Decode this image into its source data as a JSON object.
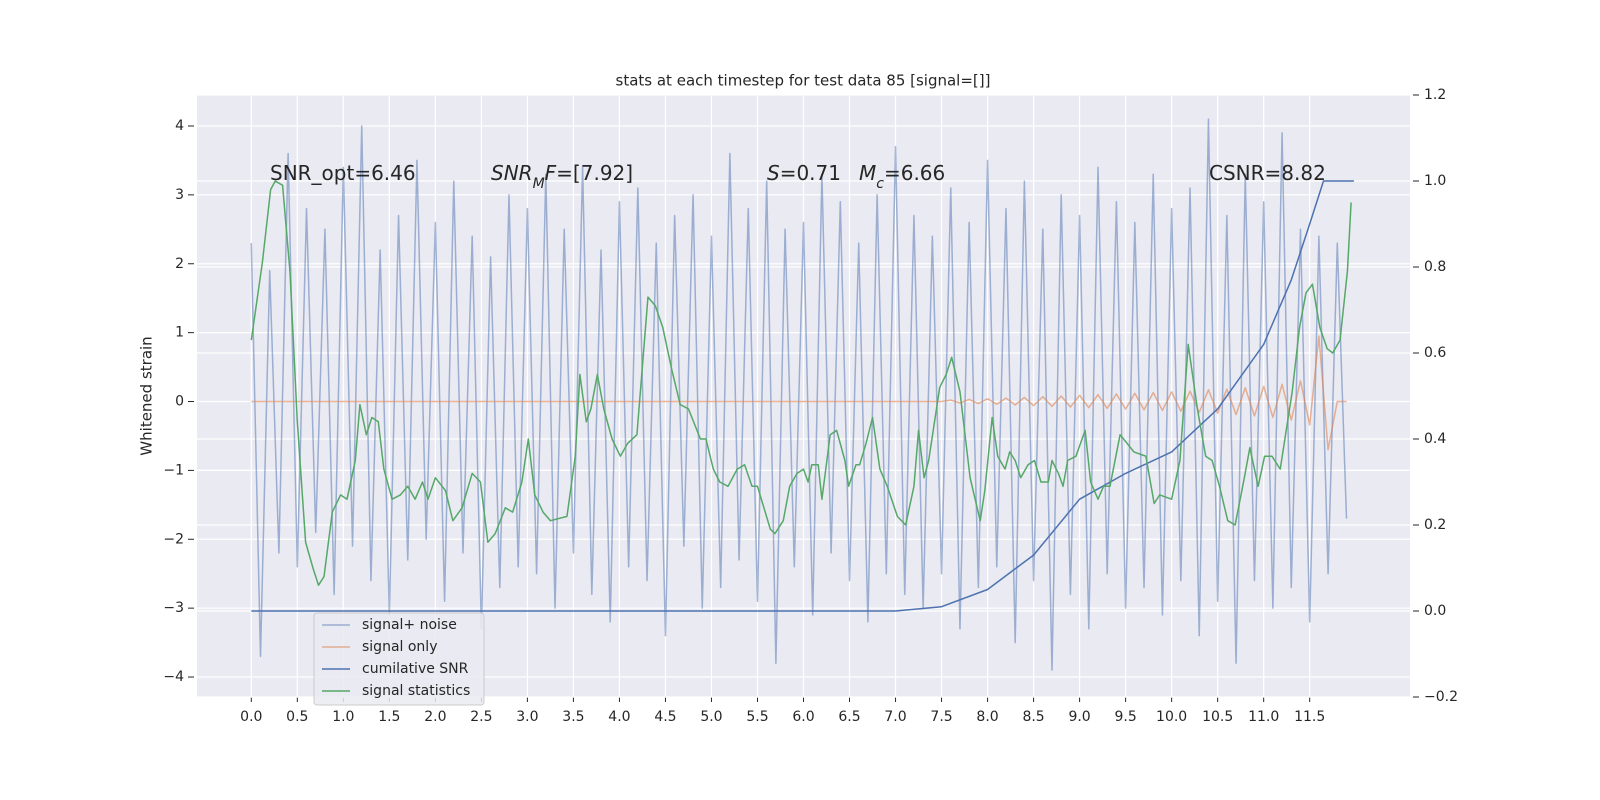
{
  "chart_data": {
    "type": "line",
    "title": "stats at each timestep for test data 85 [signal=[]]",
    "ylabel": "Whitened strain",
    "xlim": [
      -0.59,
      12.59
    ],
    "ylim": [
      -4.29,
      4.45
    ],
    "y2lim": [
      -0.2,
      1.2
    ],
    "grid": true,
    "legend_loc": "lower left",
    "xticks": [
      {
        "value": 0,
        "label": "0.0"
      },
      0.5,
      {
        "value": 1,
        "label": "1.0"
      },
      1.5,
      {
        "value": 2,
        "label": "2.0"
      },
      2.5,
      {
        "value": 3,
        "label": "3.0"
      },
      3.5,
      {
        "value": 4,
        "label": "4.0"
      },
      4.5,
      {
        "value": 5,
        "label": "5.0"
      },
      5.5,
      {
        "value": 6,
        "label": "6.0"
      },
      6.5,
      {
        "value": 7,
        "label": "7.0"
      },
      7.5,
      {
        "value": 8,
        "label": "8.0"
      },
      8.5,
      {
        "value": 9,
        "label": "9.0"
      },
      9.5,
      {
        "value": 10,
        "label": "10.0"
      },
      10.5,
      {
        "value": 11,
        "label": "11.0"
      },
      11.5
    ],
    "yticks": [
      {
        "value": -4,
        "label": "−4"
      },
      {
        "value": -3,
        "label": "−3"
      },
      {
        "value": -2,
        "label": "−2"
      },
      {
        "value": -1,
        "label": "−1"
      },
      0,
      1,
      2,
      3,
      4
    ],
    "y2ticks": [
      {
        "value": -0.2,
        "label": "−0.2"
      },
      {
        "value": 0,
        "label": "0.0"
      },
      0.2,
      0.4,
      0.6,
      0.8,
      {
        "value": 1,
        "label": "1.0"
      },
      1.2
    ],
    "annotations": [
      [
        {
          "text": "SNR_opt=6.46"
        }
      ],
      [
        {
          "text": "SNR",
          "italic": true
        },
        {
          "text": "M",
          "italic": true,
          "sub": true
        },
        {
          "text": "F",
          "italic": true
        },
        {
          "text": "=[7.92]"
        }
      ],
      [
        {
          "text": "S",
          "italic": true
        },
        {
          "text": "=0.71"
        }
      ],
      [
        {
          "text": "M",
          "italic": true
        },
        {
          "text": "c",
          "italic": true,
          "sub": true
        },
        {
          "text": "=6.66"
        }
      ],
      [
        {
          "text": "CSNR=8.82"
        }
      ]
    ],
    "x": [
      0,
      0.1,
      0.2,
      0.3,
      0.4,
      0.5,
      0.6,
      0.7,
      0.8,
      0.9,
      1,
      1.1,
      1.2,
      1.3,
      1.4,
      1.5,
      1.6,
      1.7,
      1.8,
      1.9,
      2,
      2.1,
      2.2,
      2.3,
      2.4,
      2.5,
      2.6,
      2.7,
      2.8,
      2.9,
      3,
      3.1,
      3.2,
      3.3,
      3.4,
      3.5,
      3.6,
      3.7,
      3.8,
      3.9,
      4,
      4.1,
      4.2,
      4.3,
      4.4,
      4.5,
      4.6,
      4.7,
      4.8,
      4.9,
      5,
      5.1,
      5.2,
      5.3,
      5.4,
      5.5,
      5.6,
      5.7,
      5.8,
      5.9,
      6,
      6.1,
      6.2,
      6.3,
      6.4,
      6.5,
      6.6,
      6.7,
      6.8,
      6.9,
      7,
      7.1,
      7.2,
      7.3,
      7.4,
      7.5,
      7.6,
      7.7,
      7.8,
      7.9,
      8,
      8.1,
      8.2,
      8.3,
      8.4,
      8.5,
      8.6,
      8.7,
      8.8,
      8.9,
      9,
      9.1,
      9.2,
      9.3,
      9.4,
      9.5,
      9.6,
      9.7,
      9.8,
      9.9,
      10,
      10.1,
      10.2,
      10.3,
      10.4,
      10.5,
      10.6,
      10.7,
      10.8,
      10.9,
      11,
      11.1,
      11.2,
      11.3,
      11.4,
      11.5,
      11.6,
      11.7,
      11.8,
      11.9
    ],
    "series": [
      {
        "name": "signal+ noise",
        "color": "#4c72b0",
        "opacity": 0.5,
        "values": [
          2.3,
          -3.7,
          1.9,
          -2.2,
          3.6,
          -2.4,
          2.8,
          -1.9,
          2.5,
          -2.8,
          3.4,
          -2.1,
          4.0,
          -2.6,
          2.2,
          -3.1,
          2.7,
          -2.3,
          3.5,
          -2.0,
          2.6,
          -2.9,
          3.2,
          -2.2,
          2.4,
          -3.3,
          2.1,
          -2.7,
          3.0,
          -2.4,
          2.8,
          -2.5,
          3.3,
          -3.0,
          2.5,
          -2.2,
          3.4,
          -2.8,
          2.2,
          -3.2,
          2.9,
          -2.4,
          3.1,
          -2.6,
          2.3,
          -3.4,
          2.7,
          -2.1,
          3.0,
          -3.0,
          2.4,
          -2.7,
          3.6,
          -2.3,
          2.8,
          -2.9,
          3.2,
          -3.8,
          2.5,
          -2.4,
          2.6,
          -3.1,
          3.3,
          -2.2,
          2.9,
          -2.6,
          2.3,
          -3.2,
          3.0,
          -2.5,
          3.7,
          -2.8,
          2.7,
          -3.0,
          2.4,
          -2.5,
          3.1,
          -3.3,
          2.6,
          -2.7,
          3.5,
          -2.4,
          2.8,
          -3.5,
          3.2,
          -2.6,
          2.5,
          -3.9,
          3.0,
          -2.8,
          2.7,
          -3.3,
          3.4,
          -2.5,
          2.9,
          -3.0,
          2.6,
          -2.7,
          3.3,
          -3.1,
          2.8,
          -2.6,
          3.1,
          -3.4,
          4.1,
          -2.9,
          2.7,
          -3.8,
          3.3,
          -2.6,
          2.9,
          -3.0,
          3.9,
          -2.7,
          2.5,
          -3.2,
          2.4,
          -2.5,
          2.3,
          -1.7
        ]
      },
      {
        "name": "signal only",
        "color": "#dd8452",
        "opacity": 0.6,
        "values": [
          0,
          0,
          0,
          0,
          0,
          0,
          0,
          0,
          0,
          0,
          0,
          0,
          0,
          0,
          0,
          0,
          0,
          0,
          0,
          0,
          0,
          0,
          0,
          0,
          0,
          0,
          0,
          0,
          0,
          0,
          0,
          0,
          0,
          0,
          0,
          0,
          0,
          0,
          0,
          0,
          0,
          0,
          0,
          0,
          0,
          0,
          0,
          0,
          0,
          0,
          0,
          0,
          0,
          0,
          0,
          0,
          0,
          0,
          0,
          0,
          0,
          0,
          0,
          0,
          0,
          0,
          0,
          0,
          0,
          0,
          0,
          0,
          0,
          0,
          0,
          0,
          0.02,
          -0.02,
          0.03,
          -0.03,
          0.04,
          -0.04,
          0.05,
          -0.05,
          0.06,
          -0.06,
          0.07,
          -0.07,
          0.08,
          -0.08,
          0.09,
          -0.09,
          0.1,
          -0.1,
          0.11,
          -0.11,
          0.12,
          -0.12,
          0.13,
          -0.13,
          0.14,
          -0.14,
          0.15,
          -0.16,
          0.17,
          -0.17,
          0.18,
          -0.19,
          0.2,
          -0.21,
          0.22,
          -0.23,
          0.25,
          -0.27,
          0.3,
          -0.34,
          0.95,
          -0.7,
          0,
          0
        ]
      },
      {
        "name": "cumilative SNR",
        "color": "#4c72b0",
        "opacity": 1,
        "axis": "y2",
        "x": [
          0,
          7.0,
          7.5,
          8.0,
          8.5,
          9.0,
          9.5,
          10.0,
          10.5,
          11.0,
          11.3,
          11.5,
          11.65,
          11.98
        ],
        "values": [
          0,
          0,
          0.01,
          0.05,
          0.13,
          0.26,
          0.32,
          0.37,
          0.47,
          0.62,
          0.77,
          0.9,
          1.0,
          1.0
        ]
      },
      {
        "name": "signal statistics",
        "color": "#55a868",
        "opacity": 1,
        "axis": "y2",
        "x": [
          0,
          0.12,
          0.21,
          0.26,
          0.34,
          0.42,
          0.5,
          0.59,
          0.67,
          0.73,
          0.79,
          0.88,
          0.97,
          1.04,
          1.13,
          1.18,
          1.25,
          1.31,
          1.38,
          1.44,
          1.53,
          1.62,
          1.7,
          1.78,
          1.86,
          1.92,
          2,
          2.11,
          2.19,
          2.29,
          2.4,
          2.49,
          2.57,
          2.65,
          2.76,
          2.84,
          2.94,
          3.01,
          3.08,
          3.17,
          3.25,
          3.43,
          3.52,
          3.57,
          3.64,
          3.69,
          3.76,
          3.83,
          3.92,
          4.01,
          4.09,
          4.19,
          4.31,
          4.39,
          4.47,
          4.57,
          4.66,
          4.75,
          4.88,
          4.94,
          5.02,
          5.09,
          5.18,
          5.28,
          5.36,
          5.44,
          5.5,
          5.64,
          5.69,
          5.78,
          5.85,
          5.93,
          6,
          6.05,
          6.09,
          6.16,
          6.2,
          6.29,
          6.36,
          6.45,
          6.49,
          6.57,
          6.61,
          6.68,
          6.75,
          6.83,
          6.91,
          7.02,
          7.11,
          7.2,
          7.25,
          7.31,
          7.36,
          7.48,
          7.55,
          7.61,
          7.7,
          7.81,
          7.92,
          7.97,
          8.05,
          8.11,
          8.19,
          8.24,
          8.3,
          8.36,
          8.44,
          8.51,
          8.58,
          8.66,
          8.7,
          8.77,
          8.82,
          8.87,
          8.96,
          9.06,
          9.12,
          9.2,
          9.26,
          9.33,
          9.44,
          9.59,
          9.72,
          9.81,
          9.87,
          10,
          10.09,
          10.18,
          10.28,
          10.37,
          10.44,
          10.52,
          10.61,
          10.69,
          10.79,
          10.85,
          10.94,
          11.01,
          11.09,
          11.18,
          11.31,
          11.39,
          11.46,
          11.53,
          11.61,
          11.69,
          11.75,
          11.83,
          11.91,
          11.95
        ],
        "values": [
          0.63,
          0.81,
          0.98,
          1.0,
          0.99,
          0.79,
          0.44,
          0.16,
          0.1,
          0.06,
          0.08,
          0.23,
          0.27,
          0.26,
          0.35,
          0.48,
          0.41,
          0.45,
          0.44,
          0.33,
          0.26,
          0.27,
          0.29,
          0.26,
          0.3,
          0.26,
          0.31,
          0.28,
          0.21,
          0.24,
          0.32,
          0.3,
          0.16,
          0.18,
          0.24,
          0.23,
          0.3,
          0.4,
          0.27,
          0.23,
          0.21,
          0.22,
          0.36,
          0.55,
          0.44,
          0.47,
          0.55,
          0.47,
          0.4,
          0.36,
          0.39,
          0.41,
          0.73,
          0.71,
          0.66,
          0.56,
          0.48,
          0.47,
          0.4,
          0.4,
          0.33,
          0.3,
          0.29,
          0.33,
          0.34,
          0.29,
          0.29,
          0.19,
          0.18,
          0.21,
          0.29,
          0.32,
          0.33,
          0.3,
          0.34,
          0.34,
          0.26,
          0.41,
          0.42,
          0.35,
          0.29,
          0.34,
          0.34,
          0.39,
          0.45,
          0.33,
          0.29,
          0.22,
          0.2,
          0.29,
          0.42,
          0.31,
          0.35,
          0.52,
          0.55,
          0.59,
          0.51,
          0.31,
          0.21,
          0.28,
          0.45,
          0.36,
          0.33,
          0.37,
          0.35,
          0.31,
          0.34,
          0.35,
          0.3,
          0.3,
          0.35,
          0.32,
          0.29,
          0.35,
          0.36,
          0.42,
          0.3,
          0.26,
          0.29,
          0.29,
          0.41,
          0.37,
          0.36,
          0.25,
          0.27,
          0.26,
          0.35,
          0.62,
          0.47,
          0.36,
          0.35,
          0.29,
          0.21,
          0.2,
          0.31,
          0.38,
          0.29,
          0.36,
          0.36,
          0.33,
          0.51,
          0.66,
          0.74,
          0.76,
          0.66,
          0.61,
          0.6,
          0.63,
          0.79,
          0.95
        ]
      }
    ]
  }
}
